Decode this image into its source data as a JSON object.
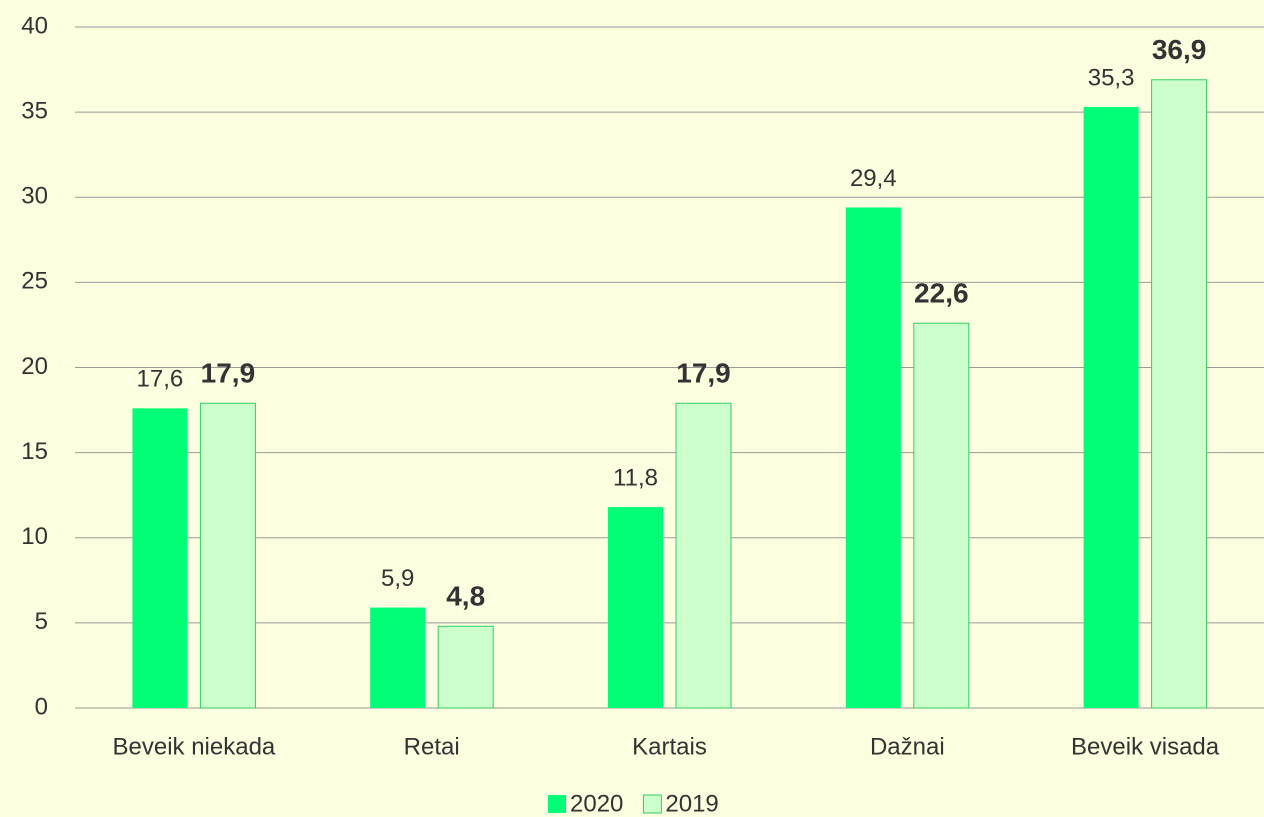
{
  "chart_data": {
    "type": "bar",
    "categories": [
      "Beveik niekada",
      "Retai",
      "Kartais",
      "Dažnai",
      "Beveik visada"
    ],
    "series": [
      {
        "name": "2020",
        "color": "#00ff77",
        "values": [
          17.6,
          5.9,
          11.8,
          29.4,
          35.3
        ],
        "value_labels": [
          "17,6",
          "5,9",
          "11,8",
          "29,4",
          "35,3"
        ]
      },
      {
        "name": "2019",
        "color": "#ccffcc",
        "values": [
          17.9,
          4.8,
          17.9,
          22.6,
          36.9
        ],
        "value_labels": [
          "17,9",
          "4,8",
          "17,9",
          "22,6",
          "36,9"
        ]
      }
    ],
    "ylim": [
      0,
      40
    ],
    "yticks": [
      0,
      5,
      10,
      15,
      20,
      25,
      30,
      35,
      40
    ],
    "grid": true,
    "legend": "bottom"
  }
}
